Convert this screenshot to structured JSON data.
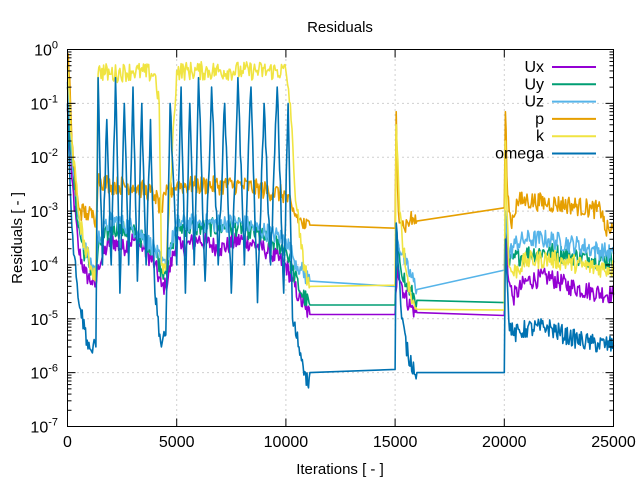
{
  "chart_data": {
    "type": "line",
    "title": "Residuals",
    "xlabel": "Iterations [ - ]",
    "ylabel": "Residuals [ - ]",
    "xlim": [
      0,
      25000
    ],
    "ylim": [
      1e-07,
      1
    ],
    "yscale": "log",
    "grid": true,
    "legend_position": "top-right",
    "x_ticks": [
      {
        "value": 0,
        "label": "0"
      },
      {
        "value": 5000,
        "label": "5000"
      },
      {
        "value": 10000,
        "label": "10000"
      },
      {
        "value": 15000,
        "label": "15000"
      },
      {
        "value": 20000,
        "label": "20000"
      },
      {
        "value": 25000,
        "label": "25000"
      }
    ],
    "y_ticks": [
      {
        "value": 0,
        "base": "10",
        "exp": "0"
      },
      {
        "value": -1,
        "base": "10",
        "exp": "-1"
      },
      {
        "value": -2,
        "base": "10",
        "exp": "-2"
      },
      {
        "value": -3,
        "base": "10",
        "exp": "-3"
      },
      {
        "value": -4,
        "base": "10",
        "exp": "-4"
      },
      {
        "value": -5,
        "base": "10",
        "exp": "-5"
      },
      {
        "value": -6,
        "base": "10",
        "exp": "-6"
      },
      {
        "value": -7,
        "base": "10",
        "exp": "-7"
      }
    ],
    "series": [
      {
        "name": "Ux",
        "color": "#9400d3",
        "points": [
          [
            0,
            0.08
          ],
          [
            200,
            0.004
          ],
          [
            500,
            0.0002
          ],
          [
            800,
            7e-05
          ],
          [
            1100,
            5e-05
          ],
          [
            1300,
            4e-05
          ],
          [
            1400,
            0.0001
          ],
          [
            2000,
            0.0003
          ],
          [
            2500,
            0.0002
          ],
          [
            3000,
            0.0003
          ],
          [
            3500,
            0.0002
          ],
          [
            4000,
            0.0001
          ],
          [
            4300,
            4e-05
          ],
          [
            4500,
            4e-05
          ],
          [
            5000,
            0.0003
          ],
          [
            5200,
            0.0002
          ],
          [
            6000,
            0.0003
          ],
          [
            7000,
            0.0002
          ],
          [
            8000,
            0.0003
          ],
          [
            9000,
            0.0002
          ],
          [
            10000,
            0.0001
          ],
          [
            10300,
            5e-05
          ],
          [
            10600,
            2.5e-05
          ],
          [
            10900,
            1.5e-05
          ],
          [
            11100,
            1.2e-05
          ],
          [
            15000,
            1.2e-05
          ],
          [
            15100,
            0.0001
          ],
          [
            15400,
            3e-05
          ],
          [
            15700,
            1.7e-05
          ],
          [
            16000,
            1.3e-05
          ],
          [
            20000,
            1.15e-05
          ],
          [
            20050,
            0.0006
          ],
          [
            20200,
            5e-05
          ],
          [
            20400,
            2.5e-05
          ],
          [
            21000,
            5e-05
          ],
          [
            22000,
            6e-05
          ],
          [
            23000,
            4e-05
          ],
          [
            24000,
            3.2e-05
          ],
          [
            25000,
            2.8e-05
          ]
        ]
      },
      {
        "name": "Uy",
        "color": "#009e73",
        "points": [
          [
            0,
            0.2
          ],
          [
            200,
            0.008
          ],
          [
            500,
            0.0005
          ],
          [
            800,
            0.00015
          ],
          [
            1100,
            8e-05
          ],
          [
            1300,
            6e-05
          ],
          [
            1400,
            0.0002
          ],
          [
            2000,
            0.0005
          ],
          [
            3000,
            0.0004
          ],
          [
            4000,
            0.0002
          ],
          [
            4300,
            8e-05
          ],
          [
            4500,
            8e-05
          ],
          [
            5000,
            0.0005
          ],
          [
            6000,
            0.0005
          ],
          [
            8000,
            0.0005
          ],
          [
            10000,
            0.0002
          ],
          [
            10300,
            8e-05
          ],
          [
            10700,
            3e-05
          ],
          [
            11100,
            1.8e-05
          ],
          [
            15000,
            1.8e-05
          ],
          [
            15100,
            0.0002
          ],
          [
            15500,
            4e-05
          ],
          [
            16000,
            2.2e-05
          ],
          [
            20000,
            2e-05
          ],
          [
            20050,
            0.0008
          ],
          [
            20200,
            0.0001
          ],
          [
            20400,
            0.00013
          ],
          [
            21000,
            0.00016
          ],
          [
            22000,
            0.00018
          ],
          [
            23000,
            0.00015
          ],
          [
            24000,
            0.00013
          ],
          [
            25000,
            0.00012
          ]
        ]
      },
      {
        "name": "Uz",
        "color": "#56b4e9",
        "points": [
          [
            0,
            0.25
          ],
          [
            200,
            0.01
          ],
          [
            500,
            0.0008
          ],
          [
            800,
            0.0002
          ],
          [
            1100,
            0.0001
          ],
          [
            1300,
            8e-05
          ],
          [
            1400,
            0.0003
          ],
          [
            2000,
            0.0007
          ],
          [
            3000,
            0.0005
          ],
          [
            4000,
            0.0002
          ],
          [
            4300,
            0.0001
          ],
          [
            4500,
            0.0001
          ],
          [
            5000,
            0.0006
          ],
          [
            6000,
            0.0006
          ],
          [
            8000,
            0.0006
          ],
          [
            10000,
            0.0003
          ],
          [
            10300,
            0.00015
          ],
          [
            10700,
            8e-05
          ],
          [
            11100,
            5e-05
          ],
          [
            15000,
            4e-05
          ],
          [
            15100,
            0.0003
          ],
          [
            15500,
            0.0001
          ],
          [
            16000,
            3.5e-05
          ],
          [
            20000,
            8e-05
          ],
          [
            20050,
            0.001
          ],
          [
            20200,
            0.00015
          ],
          [
            20500,
            0.00025
          ],
          [
            21000,
            0.0003
          ],
          [
            22000,
            0.0003
          ],
          [
            23000,
            0.00025
          ],
          [
            24000,
            0.0002
          ],
          [
            25000,
            0.00016
          ]
        ]
      },
      {
        "name": "p",
        "color": "#e69f00",
        "points": [
          [
            0,
            0.8
          ],
          [
            100,
            0.3
          ],
          [
            200,
            0.02
          ],
          [
            400,
            0.002
          ],
          [
            600,
            0.001
          ],
          [
            900,
            0.0009
          ],
          [
            1200,
            0.0008
          ],
          [
            1300,
            0.0007
          ],
          [
            1400,
            0.004
          ],
          [
            2000,
            0.003
          ],
          [
            3000,
            0.003
          ],
          [
            4000,
            0.002
          ],
          [
            4300,
            0.001
          ],
          [
            4500,
            0.002
          ],
          [
            5000,
            0.003
          ],
          [
            6000,
            0.003
          ],
          [
            8000,
            0.003
          ],
          [
            10000,
            0.002
          ],
          [
            10300,
            0.001
          ],
          [
            10600,
            0.0007
          ],
          [
            10900,
            0.0005
          ],
          [
            11100,
            0.00055
          ],
          [
            15000,
            0.00048
          ],
          [
            15050,
            0.07
          ],
          [
            15150,
            0.001
          ],
          [
            15400,
            0.0005
          ],
          [
            15700,
            0.0007
          ],
          [
            16000,
            0.00065
          ],
          [
            20000,
            0.00115
          ],
          [
            20050,
            0.07
          ],
          [
            20150,
            0.002
          ],
          [
            20300,
            0.0006
          ],
          [
            20600,
            0.0015
          ],
          [
            21000,
            0.0016
          ],
          [
            22000,
            0.0014
          ],
          [
            23000,
            0.0013
          ],
          [
            24000,
            0.0011
          ],
          [
            24500,
            0.001
          ],
          [
            24600,
            0.00045
          ],
          [
            25000,
            0.00045
          ]
        ]
      },
      {
        "name": "k",
        "color": "#f0e442",
        "points": [
          [
            0,
            0.5
          ],
          [
            200,
            0.02
          ],
          [
            500,
            0.001
          ],
          [
            800,
            0.0002
          ],
          [
            1100,
            9e-05
          ],
          [
            1300,
            6e-05
          ],
          [
            1400,
            0.35
          ],
          [
            1500,
            0.4
          ],
          [
            2000,
            0.35
          ],
          [
            3000,
            0.4
          ],
          [
            4000,
            0.35
          ],
          [
            4200,
            0.1
          ],
          [
            4300,
            0.0001
          ],
          [
            4500,
            8e-05
          ],
          [
            5000,
            0.4
          ],
          [
            6000,
            0.4
          ],
          [
            8000,
            0.4
          ],
          [
            10000,
            0.4
          ],
          [
            10200,
            0.1
          ],
          [
            10400,
            0.003
          ],
          [
            10700,
            0.0002
          ],
          [
            11000,
            5e-05
          ],
          [
            11100,
            4e-05
          ],
          [
            15000,
            4.2e-05
          ],
          [
            15050,
            0.04
          ],
          [
            15200,
            0.001
          ],
          [
            15500,
            8e-05
          ],
          [
            15800,
            2e-05
          ],
          [
            16000,
            1.5e-05
          ],
          [
            20000,
            1.45e-05
          ],
          [
            20050,
            0.02
          ],
          [
            20200,
            0.0001
          ],
          [
            20400,
            7e-05
          ],
          [
            21000,
            0.00012
          ],
          [
            22000,
            0.00013
          ],
          [
            23000,
            0.00011
          ],
          [
            24000,
            9e-05
          ],
          [
            25000,
            8.5e-05
          ]
        ]
      },
      {
        "name": "omega",
        "color": "#0072b2",
        "points": [
          [
            0,
            0.1
          ],
          [
            200,
            0.0005
          ],
          [
            400,
            6e-05
          ],
          [
            600,
            1.5e-05
          ],
          [
            900,
            4e-06
          ],
          [
            1100,
            2.5e-06
          ],
          [
            1300,
            3e-06
          ],
          [
            1400,
            0.3
          ],
          [
            1600,
            0.0001
          ],
          [
            1800,
            0.05
          ],
          [
            2000,
            0.0001
          ],
          [
            2200,
            0.3
          ],
          [
            2400,
            3e-05
          ],
          [
            2600,
            0.1
          ],
          [
            2800,
            0.0001
          ],
          [
            3000,
            0.2
          ],
          [
            3200,
            5e-05
          ],
          [
            3400,
            0.1
          ],
          [
            3600,
            0.0001
          ],
          [
            3800,
            0.05
          ],
          [
            4000,
            3e-05
          ],
          [
            4300,
            3e-06
          ],
          [
            4500,
            5e-06
          ],
          [
            4700,
            0.1
          ],
          [
            5000,
            0.0001
          ],
          [
            5200,
            0.2
          ],
          [
            5400,
            3e-05
          ],
          [
            5600,
            0.1
          ],
          [
            5800,
            0.0001
          ],
          [
            6000,
            0.3
          ],
          [
            6300,
            5e-05
          ],
          [
            6600,
            0.2
          ],
          [
            6900,
            0.0001
          ],
          [
            7200,
            0.1
          ],
          [
            7500,
            3e-05
          ],
          [
            7800,
            0.3
          ],
          [
            8100,
            0.0001
          ],
          [
            8400,
            0.2
          ],
          [
            8700,
            2e-05
          ],
          [
            9000,
            0.1
          ],
          [
            9300,
            0.0001
          ],
          [
            9600,
            0.2
          ],
          [
            9900,
            3e-05
          ],
          [
            10100,
            0.1
          ],
          [
            10300,
            1e-05
          ],
          [
            10600,
            3e-06
          ],
          [
            10900,
            1e-06
          ],
          [
            11000,
            6e-07
          ],
          [
            11100,
            1e-06
          ],
          [
            15000,
            1.15e-06
          ],
          [
            15050,
            0.0006
          ],
          [
            15300,
            1e-05
          ],
          [
            15600,
            2e-06
          ],
          [
            16000,
            1e-06
          ],
          [
            20000,
            1e-06
          ],
          [
            20050,
            0.0003
          ],
          [
            20200,
            1e-05
          ],
          [
            20400,
            5e-06
          ],
          [
            21000,
            6.5e-06
          ],
          [
            22000,
            7e-06
          ],
          [
            23000,
            4.5e-06
          ],
          [
            24000,
            3.5e-06
          ],
          [
            25000,
            3.2e-06
          ]
        ]
      }
    ]
  }
}
